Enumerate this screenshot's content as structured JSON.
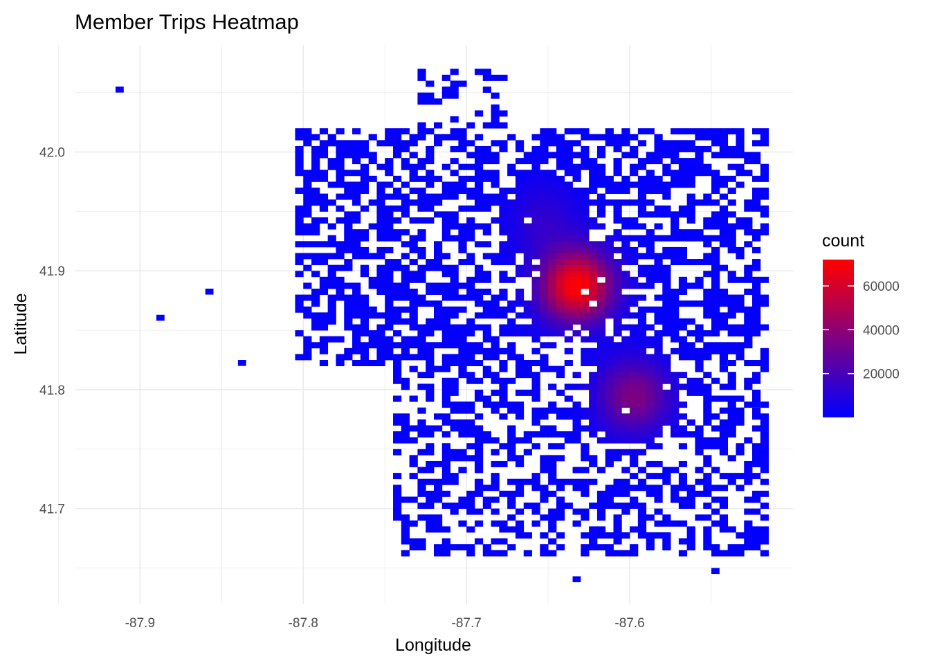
{
  "chart_data": {
    "type": "heatmap",
    "title": "Member Trips Heatmap",
    "xlabel": "Longitude",
    "ylabel": "Latitude",
    "xlim": [
      -87.94,
      -87.5
    ],
    "ylim": [
      41.62,
      42.09
    ],
    "x_ticks": [
      -87.9,
      -87.8,
      -87.7,
      -87.6
    ],
    "x_tick_labels": [
      "-87.9",
      "-87.8",
      "-87.7",
      "-87.6"
    ],
    "y_ticks": [
      41.7,
      41.8,
      41.9,
      42.0
    ],
    "y_tick_labels": [
      "41.7",
      "41.8",
      "41.9",
      "42.0"
    ],
    "bin_size": [
      0.005,
      0.005
    ],
    "grid": true,
    "legend": {
      "title": "count",
      "placement": "right",
      "min": 0,
      "max": 72000,
      "breaks": [
        20000,
        40000,
        60000
      ],
      "break_labels": [
        "20000",
        "40000",
        "60000"
      ],
      "low_color": "#0000ff",
      "high_color": "#ff0000"
    },
    "hotspots": [
      {
        "x": -87.635,
        "y": 41.885,
        "peak": 72000
      },
      {
        "x": -87.6,
        "y": 41.792,
        "peak": 35000
      },
      {
        "x": -87.655,
        "y": 41.94,
        "peak": 12000
      }
    ],
    "regions": [
      {
        "x": [
          -87.735,
          -87.68
        ],
        "y": [
          42.01,
          42.07
        ],
        "density": 0.35
      },
      {
        "x": [
          -87.81,
          -87.52
        ],
        "y": [
          41.82,
          42.02
        ],
        "density": 0.6
      },
      {
        "x": [
          -87.75,
          -87.52
        ],
        "y": [
          41.66,
          41.83
        ],
        "density": 0.45
      }
    ],
    "outliers": [
      {
        "x": -87.915,
        "y": 42.05
      },
      {
        "x": -87.86,
        "y": 41.88
      },
      {
        "x": -87.89,
        "y": 41.858
      },
      {
        "x": -87.84,
        "y": 41.82
      },
      {
        "x": -87.545,
        "y": 41.82
      },
      {
        "x": -87.525,
        "y": 41.785
      },
      {
        "x": -87.635,
        "y": 41.638
      },
      {
        "x": -87.55,
        "y": 41.645
      }
    ]
  }
}
